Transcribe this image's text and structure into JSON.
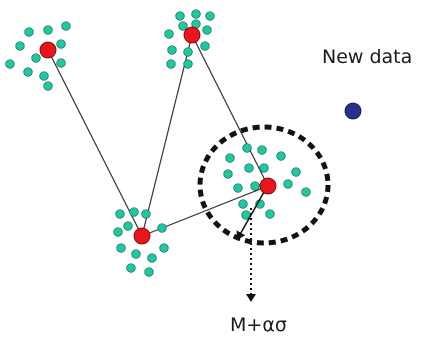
{
  "labels": {
    "new_data": "New data",
    "formula": "M+ασ"
  },
  "colors": {
    "point": "#1fc8a0",
    "point_stroke": "#0a6e58",
    "centroid": "#e8141e",
    "centroid_stroke": "#7a0000",
    "new_data": "#27308e",
    "edge": "#333333",
    "boundary": "#111111"
  }
}
